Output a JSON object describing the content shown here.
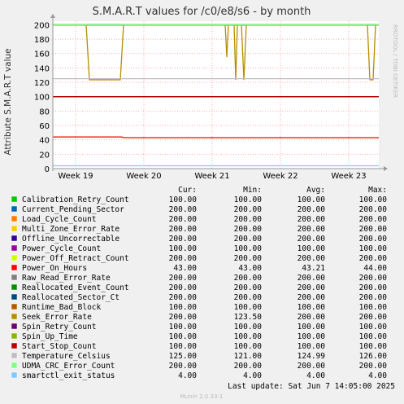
{
  "chart_data": {
    "type": "line",
    "title": "S.M.A.R.T values for /c0/e8/s6 - by month",
    "ylabel": "Attribute S.M.A.R.T value",
    "side_label": "RRDTOOL / TOBI OETIKER",
    "ylim": [
      0,
      205
    ],
    "yticks": [
      "0",
      "20",
      "40",
      "60",
      "80",
      "100",
      "120",
      "140",
      "160",
      "180",
      "200"
    ],
    "xticks": [
      "Week 19",
      "Week 20",
      "Week 21",
      "Week 22",
      "Week 23"
    ],
    "grid": true,
    "col_headers": [
      "Cur:",
      "Min:",
      "Avg:",
      "Max:"
    ],
    "series": [
      {
        "name": "Calibration_Retry_Count",
        "color": "#00cc00",
        "cur": "100.00",
        "min": "100.00",
        "avg": "100.00",
        "max": "100.00",
        "value": 100
      },
      {
        "name": "Current_Pending_Sector",
        "color": "#0066b3",
        "cur": "200.00",
        "min": "200.00",
        "avg": "200.00",
        "max": "200.00",
        "value": 200
      },
      {
        "name": "Load_Cycle_Count",
        "color": "#ff8000",
        "cur": "200.00",
        "min": "200.00",
        "avg": "200.00",
        "max": "200.00",
        "value": 200
      },
      {
        "name": "Multi_Zone_Error_Rate",
        "color": "#ffcc00",
        "cur": "200.00",
        "min": "200.00",
        "avg": "200.00",
        "max": "200.00",
        "value": 200
      },
      {
        "name": "Offline_Uncorrectable",
        "color": "#330099",
        "cur": "200.00",
        "min": "200.00",
        "avg": "200.00",
        "max": "200.00",
        "value": 200
      },
      {
        "name": "Power_Cycle_Count",
        "color": "#990099",
        "cur": "100.00",
        "min": "100.00",
        "avg": "100.00",
        "max": "100.00",
        "value": 100
      },
      {
        "name": "Power_Off_Retract_Count",
        "color": "#ccff00",
        "cur": "200.00",
        "min": "200.00",
        "avg": "200.00",
        "max": "200.00",
        "value": 200
      },
      {
        "name": "Power_On_Hours",
        "color": "#ff0000",
        "cur": "43.00",
        "min": "43.00",
        "avg": "43.21",
        "max": "44.00",
        "value": 43
      },
      {
        "name": "Raw_Read_Error_Rate",
        "color": "#808080",
        "cur": "200.00",
        "min": "200.00",
        "avg": "200.00",
        "max": "200.00",
        "value": 200
      },
      {
        "name": "Reallocated_Event_Count",
        "color": "#008f00",
        "cur": "200.00",
        "min": "200.00",
        "avg": "200.00",
        "max": "200.00",
        "value": 200
      },
      {
        "name": "Reallocated_Sector_Ct",
        "color": "#00487d",
        "cur": "200.00",
        "min": "200.00",
        "avg": "200.00",
        "max": "200.00",
        "value": 200
      },
      {
        "name": "Runtime_Bad_Block",
        "color": "#b35a00",
        "cur": "100.00",
        "min": "100.00",
        "avg": "100.00",
        "max": "100.00",
        "value": 100
      },
      {
        "name": "Seek_Error_Rate",
        "color": "#b38f00",
        "cur": "200.00",
        "min": "123.50",
        "avg": "200.00",
        "max": "200.00",
        "value": 200
      },
      {
        "name": "Spin_Retry_Count",
        "color": "#6b006b",
        "cur": "100.00",
        "min": "100.00",
        "avg": "100.00",
        "max": "100.00",
        "value": 100
      },
      {
        "name": "Spin_Up_Time",
        "color": "#8fb300",
        "cur": "100.00",
        "min": "100.00",
        "avg": "100.00",
        "max": "100.00",
        "value": 100
      },
      {
        "name": "Start_Stop_Count",
        "color": "#b30000",
        "cur": "100.00",
        "min": "100.00",
        "avg": "100.00",
        "max": "100.00",
        "value": 100
      },
      {
        "name": "Temperature_Celsius",
        "color": "#bebebe",
        "cur": "125.00",
        "min": "121.00",
        "avg": "124.99",
        "max": "126.00",
        "value": 125
      },
      {
        "name": "UDMA_CRC_Error_Count",
        "color": "#80ff80",
        "cur": "200.00",
        "min": "200.00",
        "avg": "200.00",
        "max": "200.00",
        "value": 200
      },
      {
        "name": "smartctl_exit_status",
        "color": "#80c9ff",
        "cur": "4.00",
        "min": "4.00",
        "avg": "4.00",
        "max": "4.00",
        "value": 4
      }
    ],
    "last_update": "Last update:  Sat Jun  7 14:05:00 2025",
    "footer": "Munin 2.0.33-1"
  }
}
